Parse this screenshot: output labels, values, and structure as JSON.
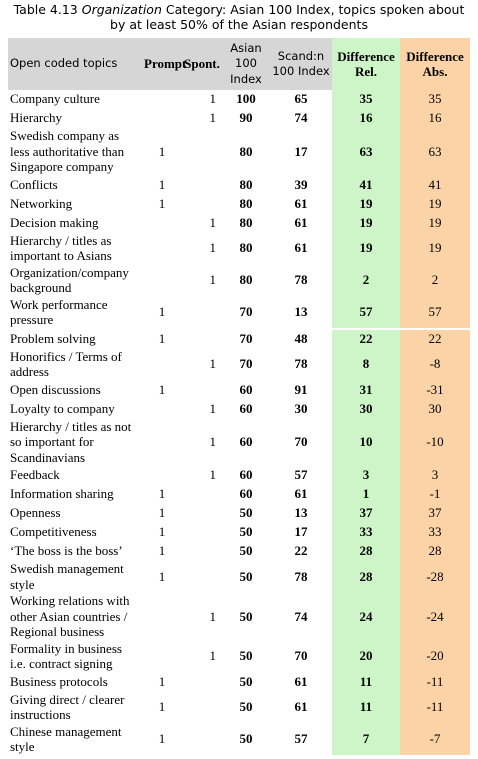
{
  "caption": {
    "label": "Table 4.13",
    "emphasis": "Organization",
    "text": "Category: Asian 100 Index, topics spoken about by at least 50% of the Asian respondents"
  },
  "table": {
    "headers": [
      "Open coded topics",
      "Prompt",
      "Spont.",
      "Asian 100 Index",
      "Scand:n 100 Index",
      "Difference Rel.",
      "Difference Abs."
    ],
    "rows": [
      [
        "Company culture",
        null,
        1,
        100,
        65,
        35,
        35
      ],
      [
        "Hierarchy",
        null,
        1,
        90,
        74,
        16,
        16
      ],
      [
        "Swedish company as less authoritative than Singapore company",
        1,
        null,
        80,
        17,
        63,
        63
      ],
      [
        "Conflicts",
        1,
        null,
        80,
        39,
        41,
        41
      ],
      [
        "Networking",
        1,
        null,
        80,
        61,
        19,
        19
      ],
      [
        "Decision making",
        null,
        1,
        80,
        61,
        19,
        19
      ],
      [
        "Hierarchy / titles as important to Asians",
        null,
        1,
        80,
        61,
        19,
        19
      ],
      [
        "Organization/company background",
        null,
        1,
        80,
        78,
        2,
        2
      ],
      [
        "Work performance pressure",
        1,
        null,
        70,
        13,
        57,
        57
      ],
      [
        "Problem solving",
        1,
        null,
        70,
        48,
        22,
        22
      ],
      [
        "Honorifics / Terms of address",
        null,
        1,
        70,
        78,
        8,
        -8
      ],
      [
        "Open discussions",
        1,
        null,
        60,
        91,
        31,
        -31
      ],
      [
        "Loyalty to company",
        null,
        1,
        60,
        30,
        30,
        30
      ],
      [
        "Hierarchy / titles as not so important for Scandinavians",
        null,
        1,
        60,
        70,
        10,
        -10
      ],
      [
        "Feedback",
        null,
        1,
        60,
        57,
        3,
        3
      ],
      [
        "Information sharing",
        1,
        null,
        60,
        61,
        1,
        -1
      ],
      [
        "Openness",
        1,
        null,
        50,
        13,
        37,
        37
      ],
      [
        "Competitiveness",
        1,
        null,
        50,
        17,
        33,
        33
      ],
      [
        "‘The boss is the boss’",
        1,
        null,
        50,
        22,
        28,
        28
      ],
      [
        "Swedish management style",
        1,
        null,
        50,
        78,
        28,
        -28
      ],
      [
        "Working relations with other Asian countries / Regional business",
        null,
        1,
        50,
        74,
        24,
        -24
      ],
      [
        "Formality in business i.e. contract signing",
        null,
        1,
        50,
        70,
        20,
        -20
      ],
      [
        "Business protocols",
        1,
        null,
        50,
        61,
        11,
        -11
      ],
      [
        "Giving direct / clearer instructions",
        1,
        null,
        50,
        61,
        11,
        -11
      ],
      [
        "Chinese management style",
        1,
        null,
        50,
        57,
        7,
        -7
      ]
    ]
  }
}
